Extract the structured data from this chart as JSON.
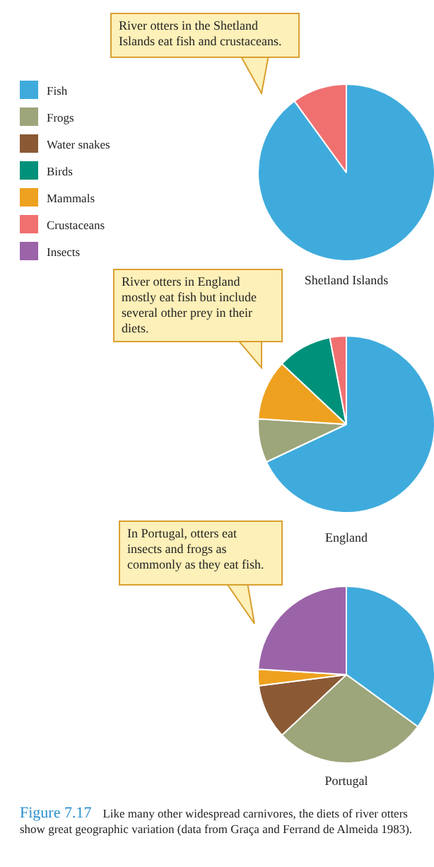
{
  "chart_data": [
    {
      "type": "pie",
      "title": "Shetland Islands",
      "categories": [
        "Fish",
        "Frogs",
        "Water snakes",
        "Birds",
        "Mammals",
        "Crustaceans",
        "Insects"
      ],
      "values": [
        90,
        0,
        0,
        0,
        0,
        10,
        0
      ],
      "colors": [
        "#3fabdc",
        "#9da57a",
        "#8b5a35",
        "#00917a",
        "#eea11f",
        "#f07070",
        "#9b64a8"
      ],
      "legend": "left",
      "annotations": [
        "River otters in the Shetland Islands eat fish and crustaceans."
      ]
    },
    {
      "type": "pie",
      "title": "England",
      "categories": [
        null,
        null,
        null,
        null,
        null
      ],
      "values": [
        68,
        8,
        11,
        10,
        3
      ],
      "colors": [
        "#3fabdc",
        "#9da57a",
        "#eea11f",
        "#00917a",
        "#f07070"
      ],
      "annotations": [
        "River otters in England mostly eat fish but include several other prey in their diets."
      ]
    },
    {
      "type": "pie",
      "title": "Portugal",
      "categories": [
        null,
        null,
        null,
        null,
        null
      ],
      "values": [
        35,
        28,
        10,
        3,
        24
      ],
      "colors": [
        "#3fabdc",
        "#9da57a",
        "#8b5a35",
        "#eea11f",
        "#9b64a8"
      ],
      "annotations": [
        "In Portugal, otters eat insects and frogs as commonly as they eat fish.",
        "Figure 7.17",
        "Like many other widespread carnivores, the diets of river otters show great geographic variation (data from Graça and Ferrand de Almeida 1983)."
      ]
    }
  ]
}
